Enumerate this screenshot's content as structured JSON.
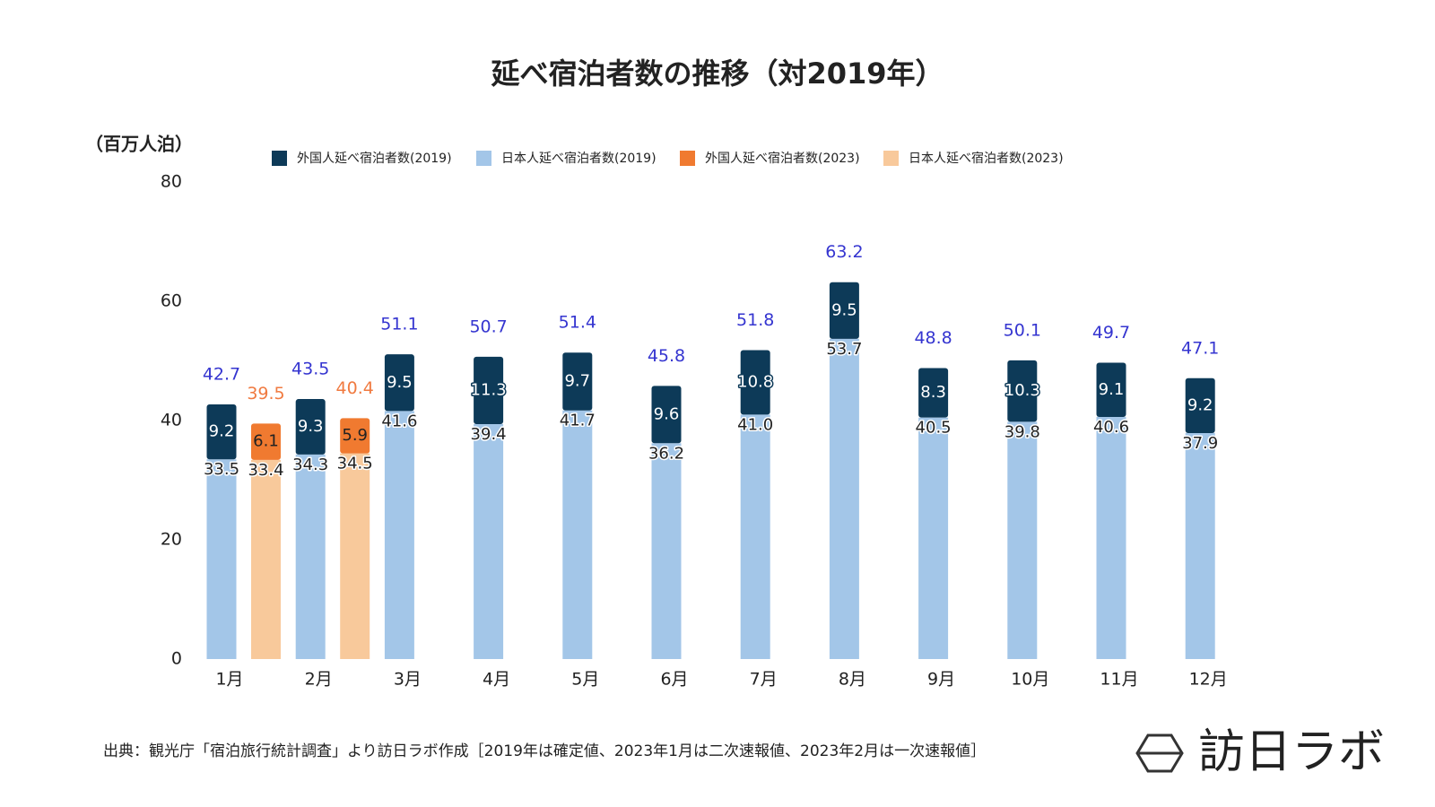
{
  "chart_data": {
    "type": "bar",
    "title": "延べ宿泊者数の推移（対2019年）",
    "y_label": "（百万人泊）",
    "categories": [
      "1月",
      "2月",
      "3月",
      "4月",
      "5月",
      "6月",
      "7月",
      "8月",
      "9月",
      "10月",
      "11月",
      "12月"
    ],
    "series": [
      {
        "name": "外国人延べ宿泊者数(2019)",
        "color": "#0d3a58",
        "values": [
          9.2,
          9.3,
          9.5,
          11.3,
          9.7,
          9.6,
          10.8,
          9.5,
          8.3,
          10.3,
          9.1,
          9.2
        ]
      },
      {
        "name": "日本人延べ宿泊者数(2019)",
        "color": "#a3c6e8",
        "values": [
          33.5,
          34.3,
          41.6,
          39.4,
          41.7,
          36.2,
          41.0,
          53.7,
          40.5,
          39.8,
          40.6,
          37.9
        ],
        "value_labels": [
          "33.5",
          "34.3",
          "41.6",
          "39.4",
          "41.7",
          "36.2",
          "41.0",
          "53.7",
          "40.5",
          "39.8",
          "40.6",
          "37.9"
        ]
      },
      {
        "name": "外国人延べ宿泊者数(2023)",
        "color": "#f07a30",
        "values": [
          6.1,
          5.9,
          null,
          null,
          null,
          null,
          null,
          null,
          null,
          null,
          null,
          null
        ]
      },
      {
        "name": "日本人延べ宿泊者数(2023)",
        "color": "#f8c99b",
        "values": [
          33.4,
          34.5,
          null,
          null,
          null,
          null,
          null,
          null,
          null,
          null,
          null,
          null
        ]
      }
    ],
    "totals": [
      [
        42.7,
        43.5,
        51.1,
        50.7,
        51.4,
        45.8,
        51.8,
        63.2,
        48.8,
        50.1,
        49.7,
        47.1
      ],
      [
        39.5,
        40.4,
        null,
        null,
        null,
        null,
        null,
        null,
        null,
        null,
        null,
        null
      ]
    ],
    "total_colors": [
      "#3535d0",
      "#f07a40"
    ],
    "ylim": [
      0,
      80
    ],
    "yticks": [
      0,
      20,
      40,
      60,
      80
    ],
    "grid": false,
    "source": "出典：観光庁「宿泊旅行統計調査」より訪日ラボ作成［2019年は確定値、2023年1月は二次速報値、2023年2月は一次速報値］",
    "logo": "訪日ラボ"
  }
}
